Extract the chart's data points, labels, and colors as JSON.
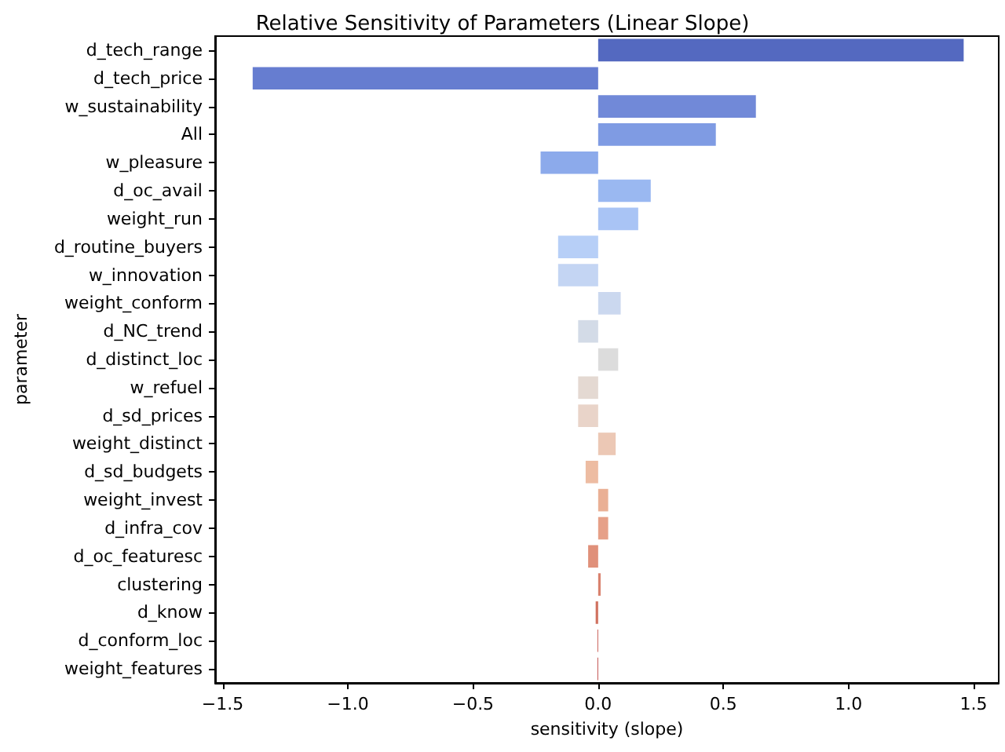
{
  "chart_data": {
    "type": "bar",
    "orientation": "horizontal",
    "title": "Relative Sensitivity of Parameters (Linear Slope)",
    "xlabel": "sensitivity (slope)",
    "ylabel": "parameter",
    "categories": [
      "d_tech_range",
      "d_tech_price",
      "w_sustainability",
      "All",
      "w_pleasure",
      "d_oc_avail",
      "weight_run",
      "d_routine_buyers",
      "w_innovation",
      "weight_conform",
      "d_NC_trend",
      "d_distinct_loc",
      "w_refuel",
      "d_sd_prices",
      "weight_distinct",
      "d_sd_budgets",
      "weight_invest",
      "d_infra_cov",
      "d_oc_featuresc",
      "clustering",
      "d_know",
      "d_conform_loc",
      "weight_features"
    ],
    "values": [
      1.46,
      -1.38,
      0.63,
      0.47,
      -0.23,
      0.21,
      0.16,
      -0.16,
      -0.16,
      0.09,
      -0.08,
      0.08,
      -0.08,
      -0.08,
      0.07,
      -0.05,
      0.04,
      0.04,
      -0.04,
      0.01,
      -0.01,
      -0.003,
      -0.003
    ],
    "colors": [
      "#5469c0",
      "#667dd0",
      "#7189d8",
      "#7f9be3",
      "#8caaeb",
      "#9ab8f1",
      "#a9c4f5",
      "#b7cff7",
      "#c4d5f3",
      "#cbd8ef",
      "#d3dbe7",
      "#dcdcdc",
      "#e4d9d2",
      "#e9d4c9",
      "#ecc8b5",
      "#edbca2",
      "#eab095",
      "#e6a088",
      "#e0907a",
      "#d9826e",
      "#d0715f",
      "#c85a51",
      "#bf4a47"
    ],
    "xlim": [
      -1.53,
      1.6
    ],
    "xticks": [
      {
        "value": -1.5,
        "label": "−1.5"
      },
      {
        "value": -1,
        "label": "−1.0"
      },
      {
        "value": -0.5,
        "label": "−0.5"
      },
      {
        "value": 0,
        "label": "0.0"
      },
      {
        "value": 0.5,
        "label": "0.5"
      },
      {
        "value": 1,
        "label": "1.0"
      },
      {
        "value": 1.5,
        "label": "1.5"
      }
    ],
    "grid": false
  }
}
